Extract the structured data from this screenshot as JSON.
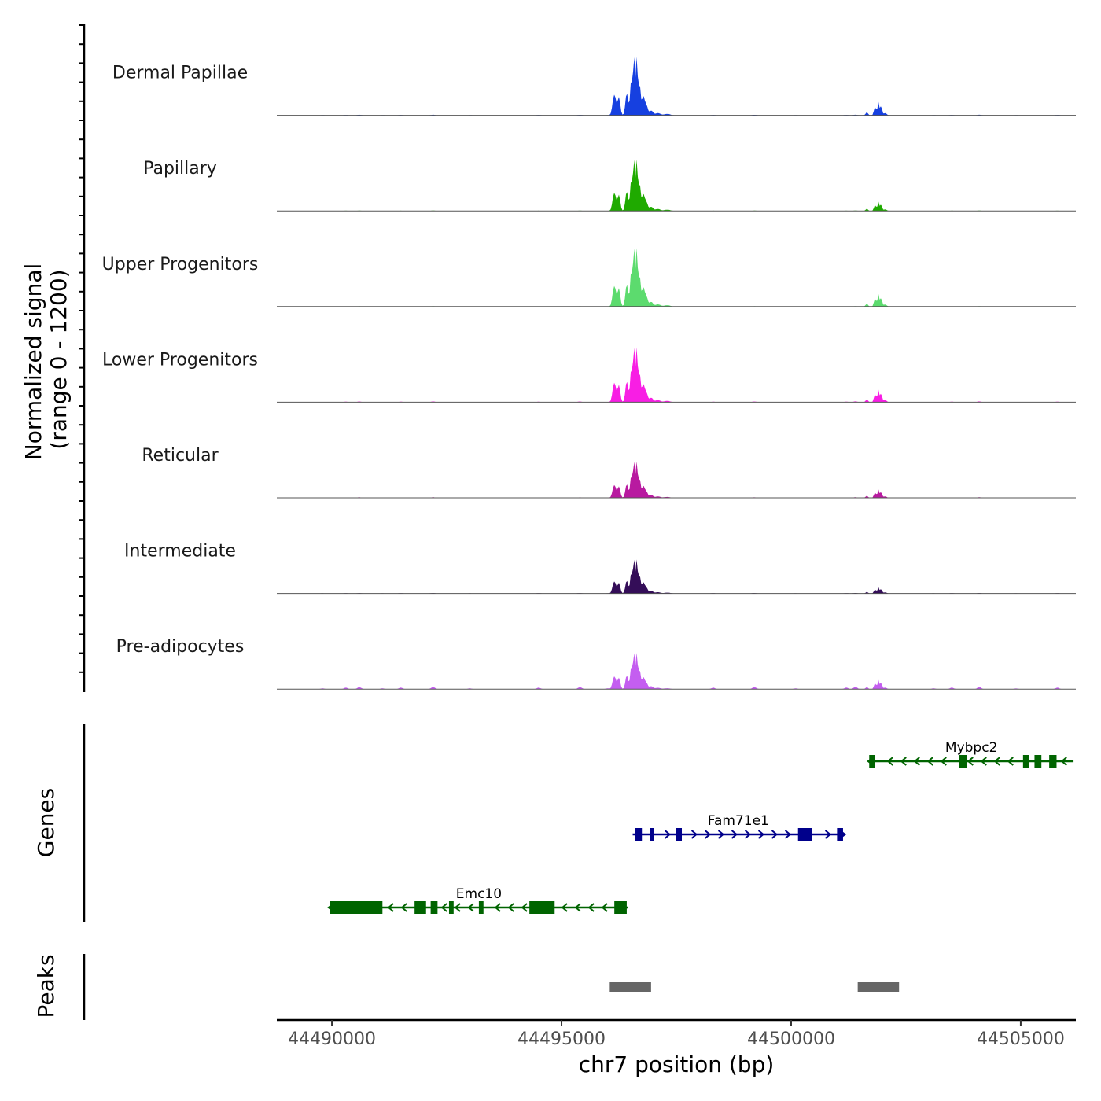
{
  "chart_data": {
    "type": "area",
    "title": "",
    "chromosome": "chr7",
    "xlabel": "chr7 position (bp)",
    "ylabel_line1": "Normalized signal",
    "ylabel_line2": "(range 0 - 1200)",
    "ylim": [
      0,
      1200
    ],
    "xlim": [
      44488800,
      44506200
    ],
    "x_ticks": [
      44490000,
      44495000,
      44500000,
      44505000
    ],
    "x_tick_labels": [
      "44490000",
      "44495000",
      "44500000",
      "44505000"
    ],
    "tracks": [
      {
        "name": "Dermal Papillae",
        "color": "#1640e0",
        "peak_scale": 1.0,
        "scale2": 0.32,
        "noise": 0.25
      },
      {
        "name": "Papillary",
        "color": "#1faa00",
        "peak_scale": 0.88,
        "scale2": 0.22,
        "noise": 0.15
      },
      {
        "name": "Upper Progenitors",
        "color": "#5cdb6e",
        "peak_scale": 1.0,
        "scale2": 0.3,
        "noise": 0.15
      },
      {
        "name": "Lower Progenitors",
        "color": "#f81ee4",
        "peak_scale": 0.94,
        "scale2": 0.3,
        "noise": 0.35
      },
      {
        "name": "Reticular",
        "color": "#b81aa0",
        "peak_scale": 0.62,
        "scale2": 0.2,
        "noise": 0.25
      },
      {
        "name": "Intermediate",
        "color": "#340d58",
        "peak_scale": 0.58,
        "scale2": 0.15,
        "noise": 0.2
      },
      {
        "name": "Pre-adipocytes",
        "color": "#c45ef0",
        "peak_scale": 0.62,
        "scale2": 0.22,
        "noise": 1.0
      }
    ],
    "genes_label": "Genes",
    "genes": [
      {
        "name": "Mybpc2",
        "strand": "-",
        "color": "#006400",
        "start": 44501700,
        "end": 44506150,
        "exons": [
          [
            44501700,
            44501820
          ],
          [
            44503650,
            44503820
          ],
          [
            44505050,
            44505180
          ],
          [
            44505300,
            44505450
          ],
          [
            44505620,
            44505780
          ]
        ]
      },
      {
        "name": "Fam71e1",
        "strand": "+",
        "color": "#00008b",
        "start": 44496550,
        "end": 44501150,
        "exons": [
          [
            44496600,
            44496750
          ],
          [
            44496920,
            44497020
          ],
          [
            44497500,
            44497620
          ],
          [
            44500150,
            44500450
          ],
          [
            44501000,
            44501130
          ]
        ]
      },
      {
        "name": "Emc10",
        "strand": "-",
        "color": "#006400",
        "start": 44489950,
        "end": 44496450,
        "exons": [
          [
            44489950,
            44491100
          ],
          [
            44491800,
            44492050
          ],
          [
            44492150,
            44492300
          ],
          [
            44492550,
            44492650
          ],
          [
            44493200,
            44493300
          ],
          [
            44494300,
            44494850
          ],
          [
            44496150,
            44496420
          ]
        ]
      }
    ],
    "peaks_label": "Peaks",
    "peaks": [
      [
        44496050,
        44496950
      ],
      [
        44501450,
        44502350
      ]
    ],
    "peak_color": "#666666"
  }
}
